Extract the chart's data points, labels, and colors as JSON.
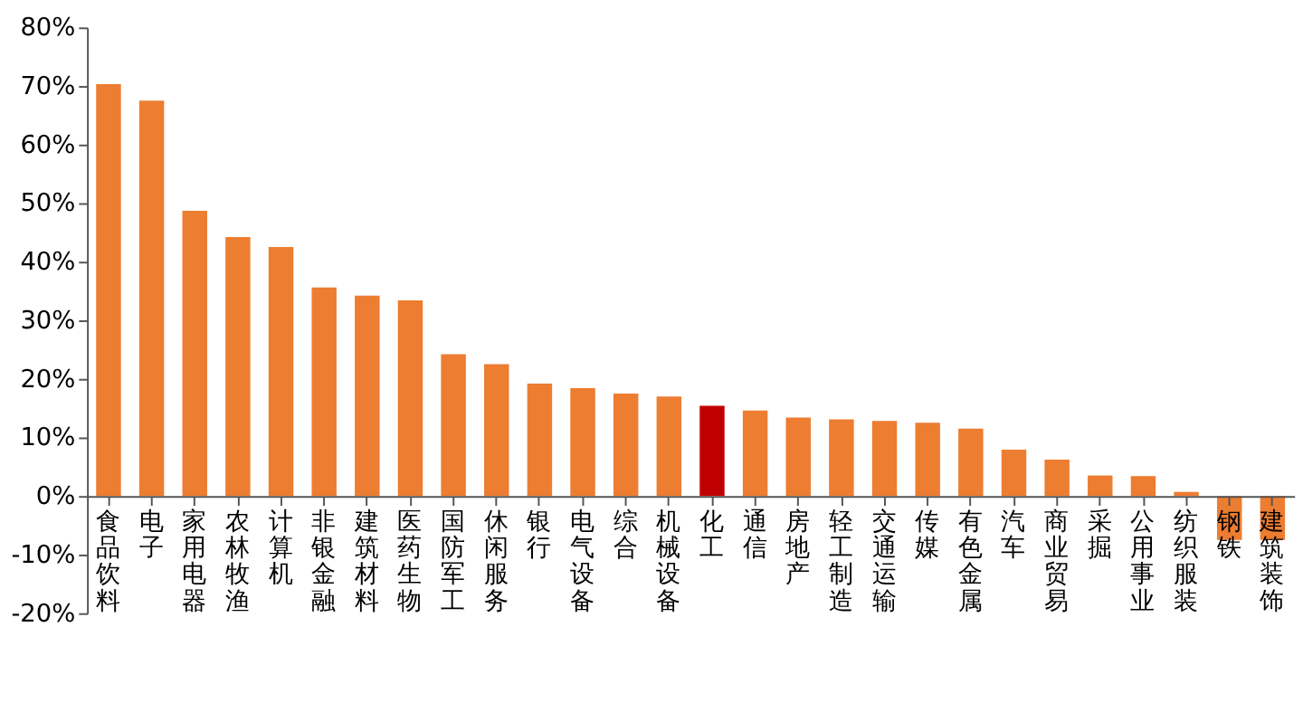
{
  "chart_data": {
    "type": "bar",
    "categories": [
      "食品饮料",
      "电子",
      "家用电器",
      "农林牧渔",
      "计算机",
      "非银金融",
      "建筑材料",
      "医药生物",
      "国防军工",
      "休闲服务",
      "银行",
      "电气设备",
      "综合",
      "机械设备",
      "化工",
      "通信",
      "房地产",
      "轻工制造",
      "交通运输",
      "传媒",
      "有色金属",
      "汽车",
      "商业贸易",
      "采掘",
      "公用事业",
      "纺织服装",
      "钢铁",
      "建筑装饰"
    ],
    "values": [
      70.3,
      67.5,
      48.7,
      44.2,
      42.5,
      35.6,
      34.2,
      33.4,
      24.2,
      22.5,
      19.2,
      18.4,
      17.5,
      17.0,
      15.4,
      14.6,
      13.4,
      13.1,
      12.8,
      12.5,
      11.5,
      7.9,
      6.2,
      3.5,
      3.4,
      0.7,
      -7.5,
      -7.5
    ],
    "colors": [
      "#ed7d31",
      "#ed7d31",
      "#ed7d31",
      "#ed7d31",
      "#ed7d31",
      "#ed7d31",
      "#ed7d31",
      "#ed7d31",
      "#ed7d31",
      "#ed7d31",
      "#ed7d31",
      "#ed7d31",
      "#ed7d31",
      "#ed7d31",
      "#c00000",
      "#ed7d31",
      "#ed7d31",
      "#ed7d31",
      "#ed7d31",
      "#ed7d31",
      "#ed7d31",
      "#ed7d31",
      "#ed7d31",
      "#ed7d31",
      "#ed7d31",
      "#ed7d31",
      "#ed7d31",
      "#ed7d31"
    ],
    "ylim": [
      -20,
      80
    ],
    "yticks": [
      {
        "value": -20,
        "label": "-20%"
      },
      {
        "value": -10,
        "label": "-10%"
      },
      {
        "value": 0,
        "label": "0%"
      },
      {
        "value": 10,
        "label": "10%"
      },
      {
        "value": 20,
        "label": "20%"
      },
      {
        "value": 30,
        "label": "30%"
      },
      {
        "value": 40,
        "label": "40%"
      },
      {
        "value": 50,
        "label": "50%"
      },
      {
        "value": 60,
        "label": "60%"
      },
      {
        "value": 70,
        "label": "70%"
      },
      {
        "value": 80,
        "label": "80%"
      }
    ],
    "grid": false
  }
}
